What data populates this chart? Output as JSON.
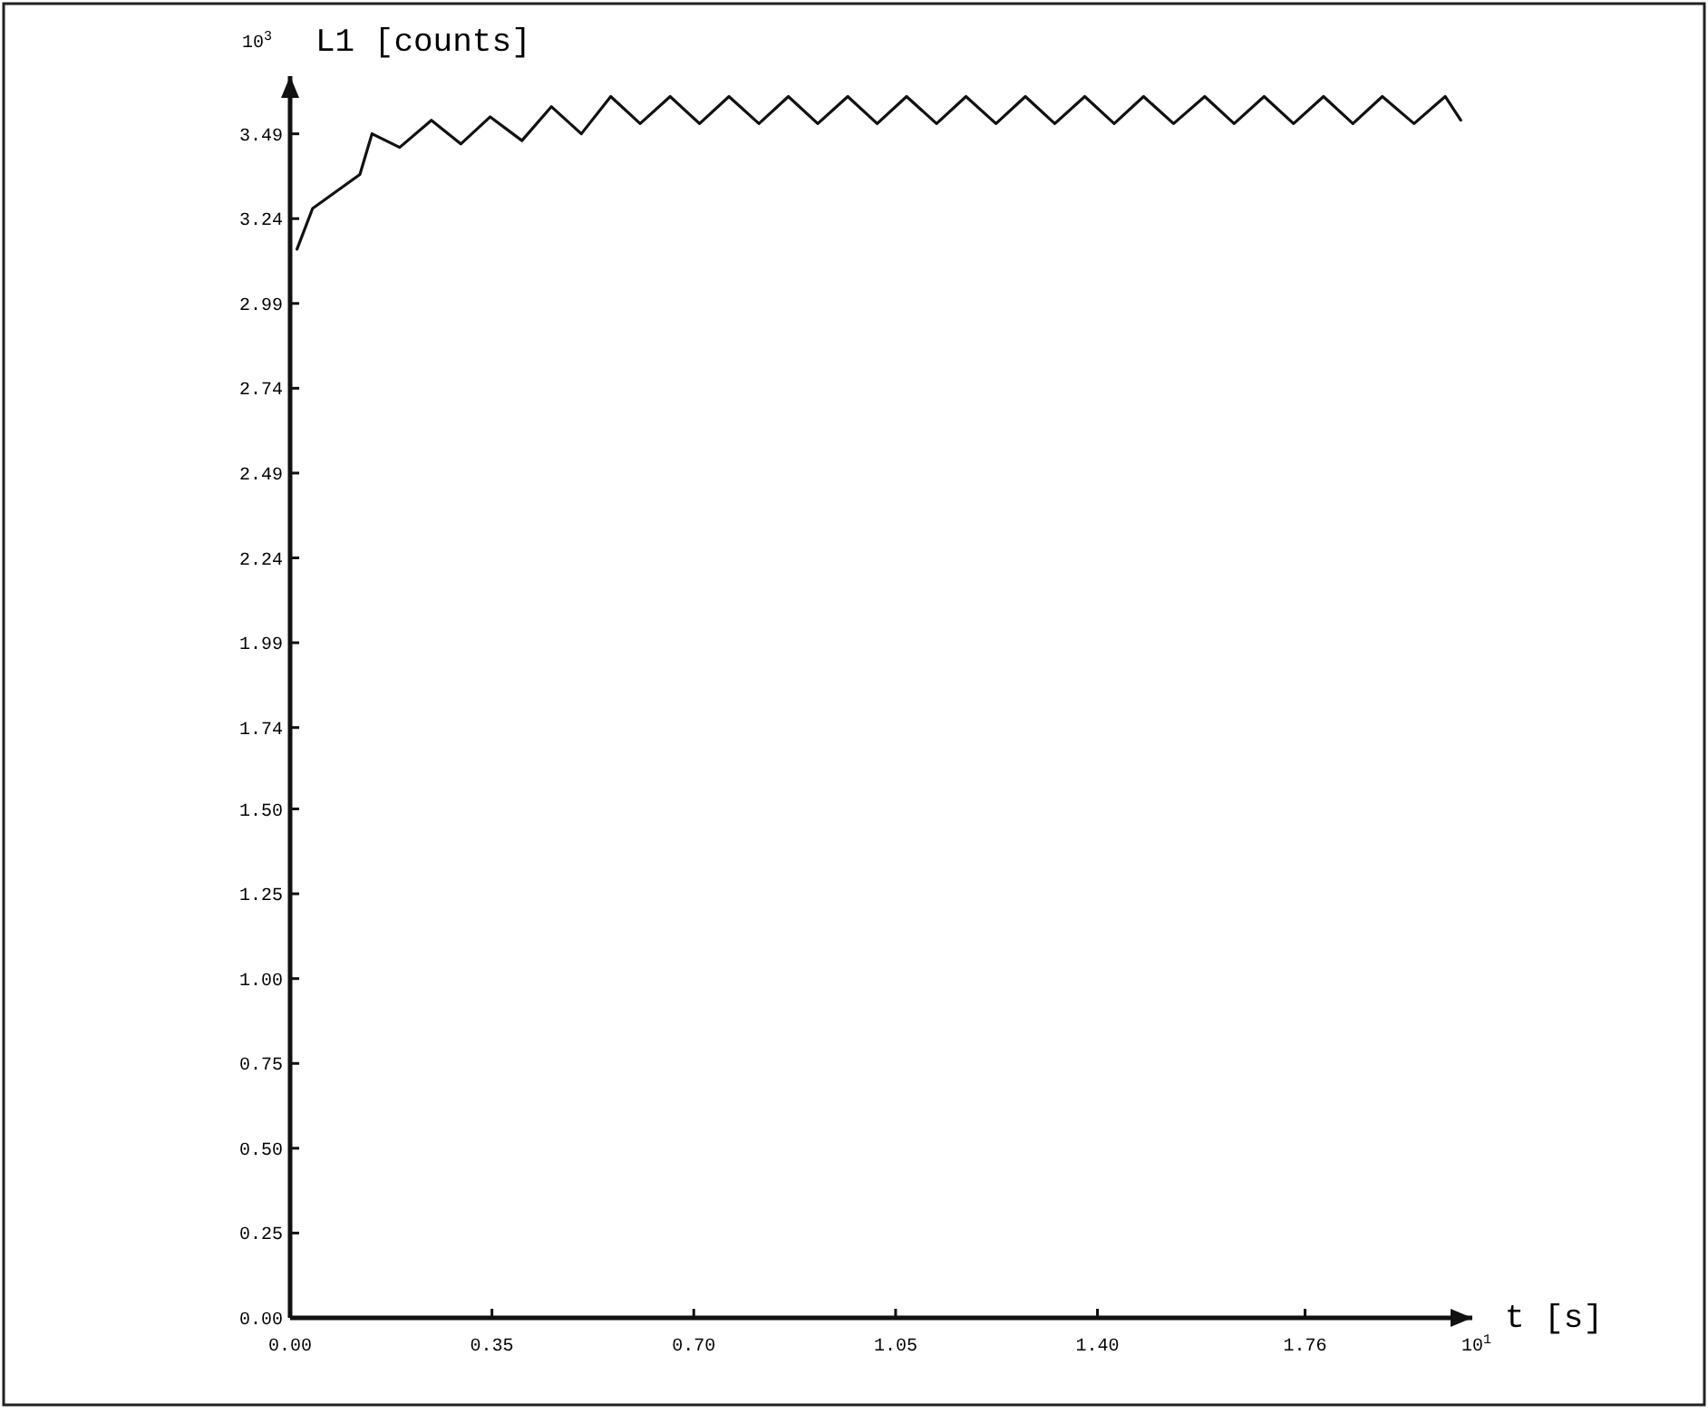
{
  "chart_data": {
    "type": "line",
    "ylabel": "L1 [counts]",
    "xlabel": "t [s]",
    "annotations": [
      "10$^{3}$",
      "10$^{1}$"
    ],
    "xlim": [
      0,
      2.05
    ],
    "ylim": [
      0,
      3.66
    ],
    "xticks": [
      {
        "value": 0,
        "label": "0.00"
      },
      {
        "value": 0.35,
        "label": "0.35"
      },
      {
        "value": 0.7,
        "label": "0.70"
      },
      {
        "value": 1.05,
        "label": "1.05"
      },
      {
        "value": 1.4,
        "label": "1.40"
      },
      {
        "value": 1.76,
        "label": "1.76"
      }
    ],
    "yticks": [
      {
        "value": 0,
        "label": "0.00"
      },
      {
        "value": 0.25,
        "label": "0.25"
      },
      {
        "value": 0.5,
        "label": "0.50"
      },
      {
        "value": 0.75,
        "label": "0.75"
      },
      {
        "value": 1,
        "label": "1.00"
      },
      {
        "value": 1.25,
        "label": "1.25"
      },
      {
        "value": 1.5,
        "label": "1.50"
      },
      1.74,
      1.99,
      2.24,
      2.49,
      2.74,
      2.99,
      3.24,
      3.49
    ],
    "grid": false,
    "marker": "none",
    "line_style": "solid",
    "series": [
      {
        "color": "#111111",
        "x": [
          0.012,
          0.039,
          0.121,
          0.142,
          0.19,
          0.245,
          0.296,
          0.347,
          0.402,
          0.453,
          0.505,
          0.556,
          0.607,
          0.659,
          0.71,
          0.761,
          0.813,
          0.864,
          0.915,
          0.967,
          1.018,
          1.069,
          1.121,
          1.172,
          1.224,
          1.275,
          1.326,
          1.378,
          1.429,
          1.48,
          1.532,
          1.586,
          1.637,
          1.689,
          1.74,
          1.792,
          1.843,
          1.894,
          1.949,
          2.003,
          2.03
        ],
        "values": [
          3.15,
          3.27,
          3.37,
          3.49,
          3.45,
          3.53,
          3.46,
          3.54,
          3.47,
          3.57,
          3.49,
          3.6,
          3.52,
          3.6,
          3.52,
          3.6,
          3.52,
          3.6,
          3.52,
          3.6,
          3.52,
          3.6,
          3.52,
          3.6,
          3.52,
          3.6,
          3.52,
          3.6,
          3.52,
          3.6,
          3.52,
          3.6,
          3.52,
          3.6,
          3.52,
          3.6,
          3.52,
          3.6,
          3.52,
          3.6,
          3.53
        ]
      }
    ]
  }
}
